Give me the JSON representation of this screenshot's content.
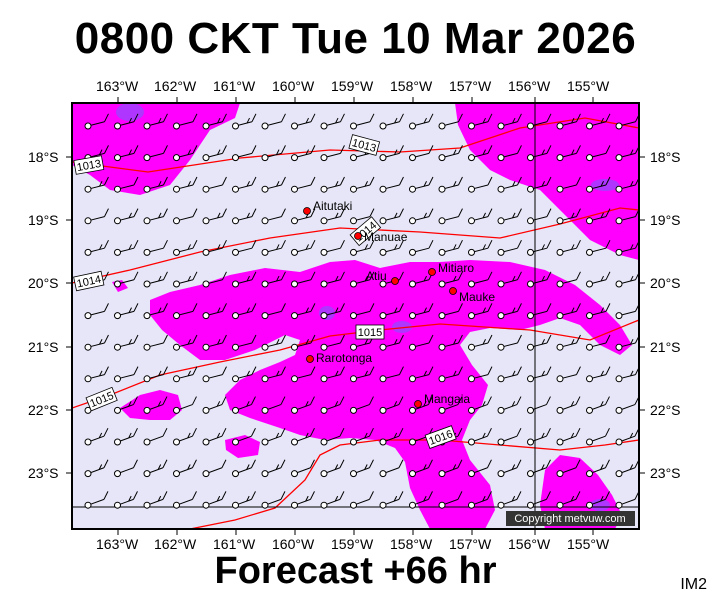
{
  "title": "0800 CKT Tue 10 Mar 2026",
  "footer": "Forecast +66 hr",
  "image_tag": "IM2",
  "copyright": "Copyright metvuw.com",
  "colors": {
    "land_bg": "#e6e6f8",
    "rain_light": "#ff00ff",
    "rain_heavy": "#a040ff",
    "isobar": "#ff0000",
    "frame": "#000000"
  },
  "lon_labels": [
    "163°W",
    "162°W",
    "161°W",
    "160°W",
    "159°W",
    "158°W",
    "157°W",
    "156°W",
    "155°W"
  ],
  "lat_labels": [
    "18°S",
    "19°S",
    "20°S",
    "21°S",
    "22°S",
    "23°S"
  ],
  "isobar_labels": [
    "1013",
    "1013",
    "1014",
    "1014",
    "1015",
    "1015",
    "1016"
  ],
  "places": [
    {
      "name": "Aitutaki"
    },
    {
      "name": "Manuae"
    },
    {
      "name": "Atiu"
    },
    {
      "name": "Mitiaro"
    },
    {
      "name": "Mauke"
    },
    {
      "name": "Rarotonga"
    },
    {
      "name": "Mangaia"
    }
  ]
}
